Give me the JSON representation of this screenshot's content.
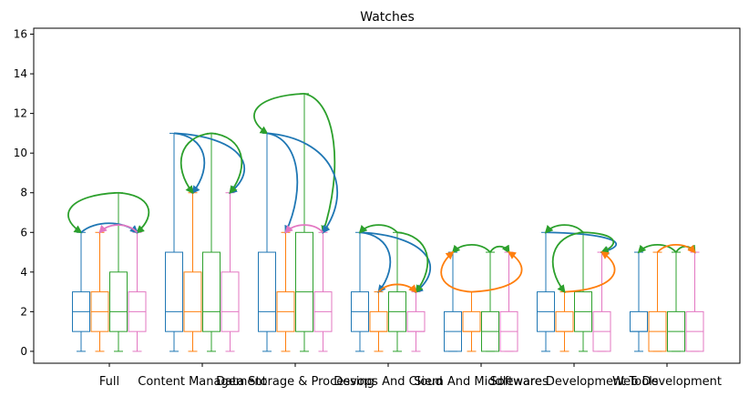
{
  "chart_data": {
    "type": "box",
    "title": "Watches",
    "xlabel": "",
    "ylabel": "",
    "ylim": [
      -0.6,
      16.3
    ],
    "yticks": [
      0,
      2,
      4,
      6,
      8,
      10,
      12,
      14,
      16
    ],
    "grid": false,
    "legend": "none",
    "series_colors": [
      "#1f77b4",
      "#ff7f0e",
      "#2ca02c",
      "#e377c2"
    ],
    "categories": [
      "Full",
      "Content Management",
      "Data Storage & Processing",
      "Devops And Cloud",
      "Siem And Middlewares",
      "Software Development Tools",
      "Web Development"
    ],
    "groups": [
      {
        "boxes": [
          {
            "min": 0,
            "q1": 1,
            "median": 2,
            "q3": 3,
            "max": 6
          },
          {
            "min": 0,
            "q1": 1,
            "median": 2,
            "q3": 3,
            "max": 6
          },
          {
            "min": 0,
            "q1": 1,
            "median": 2,
            "q3": 4,
            "max": 8
          },
          {
            "min": 0,
            "q1": 1,
            "median": 2,
            "q3": 3,
            "max": 6
          }
        ],
        "arrows": [
          {
            "from": 2,
            "to": 0,
            "color": "#2ca02c"
          },
          {
            "from": 2,
            "to": 3,
            "color": "#2ca02c"
          },
          {
            "from": 0,
            "to": 3,
            "color": "#1f77b4"
          },
          {
            "from": 3,
            "to": 1,
            "color": "#e377c2"
          }
        ]
      },
      {
        "boxes": [
          {
            "min": 0,
            "q1": 1,
            "median": 2,
            "q3": 5,
            "max": 11
          },
          {
            "min": 0,
            "q1": 1,
            "median": 2,
            "q3": 4,
            "max": 8
          },
          {
            "min": 0,
            "q1": 1,
            "median": 2,
            "q3": 5,
            "max": 11
          },
          {
            "min": 0,
            "q1": 1,
            "median": 2,
            "q3": 4,
            "max": 8
          }
        ],
        "arrows": [
          {
            "from": 0,
            "to": 1,
            "color": "#1f77b4"
          },
          {
            "from": 0,
            "to": 3,
            "color": "#1f77b4"
          },
          {
            "from": 2,
            "to": 1,
            "color": "#2ca02c"
          },
          {
            "from": 2,
            "to": 3,
            "color": "#2ca02c"
          }
        ]
      },
      {
        "boxes": [
          {
            "min": 0,
            "q1": 1,
            "median": 2,
            "q3": 5,
            "max": 11
          },
          {
            "min": 0,
            "q1": 1,
            "median": 2,
            "q3": 3,
            "max": 6
          },
          {
            "min": 0,
            "q1": 1,
            "median": 3,
            "q3": 6,
            "max": 13
          },
          {
            "min": 0,
            "q1": 1,
            "median": 2,
            "q3": 3,
            "max": 6
          }
        ],
        "arrows": [
          {
            "from": 2,
            "to": 0,
            "color": "#2ca02c"
          },
          {
            "from": 2,
            "to": 3,
            "color": "#2ca02c"
          },
          {
            "from": 0,
            "to": 1,
            "color": "#1f77b4"
          },
          {
            "from": 0,
            "to": 3,
            "color": "#1f77b4"
          },
          {
            "from": 3,
            "to": 1,
            "color": "#e377c2"
          }
        ]
      },
      {
        "boxes": [
          {
            "min": 0,
            "q1": 1,
            "median": 2,
            "q3": 3,
            "max": 6
          },
          {
            "min": 0,
            "q1": 1,
            "median": 1,
            "q3": 2,
            "max": 3
          },
          {
            "min": 0,
            "q1": 1,
            "median": 2,
            "q3": 3,
            "max": 6
          },
          {
            "min": 0,
            "q1": 1,
            "median": 1,
            "q3": 2,
            "max": 3
          }
        ],
        "arrows": [
          {
            "from": 0,
            "to": 1,
            "color": "#1f77b4"
          },
          {
            "from": 0,
            "to": 3,
            "color": "#1f77b4"
          },
          {
            "from": 2,
            "to": 0,
            "color": "#2ca02c"
          },
          {
            "from": 2,
            "to": 3,
            "color": "#2ca02c"
          },
          {
            "from": 1,
            "to": 3,
            "color": "#ff7f0e"
          }
        ]
      },
      {
        "boxes": [
          {
            "min": 0,
            "q1": 0,
            "median": 1,
            "q3": 2,
            "max": 5
          },
          {
            "min": 0,
            "q1": 1,
            "median": 1,
            "q3": 2,
            "max": 3
          },
          {
            "min": 0,
            "q1": 0,
            "median": 1,
            "q3": 2,
            "max": 5
          },
          {
            "min": 0,
            "q1": 0,
            "median": 1,
            "q3": 2,
            "max": 5
          }
        ],
        "arrows": [
          {
            "from": 2,
            "to": 0,
            "color": "#2ca02c"
          },
          {
            "from": 2,
            "to": 3,
            "color": "#2ca02c"
          },
          {
            "from": 1,
            "to": 0,
            "color": "#ff7f0e"
          },
          {
            "from": 1,
            "to": 3,
            "color": "#ff7f0e"
          }
        ]
      },
      {
        "boxes": [
          {
            "min": 0,
            "q1": 1,
            "median": 2,
            "q3": 3,
            "max": 6
          },
          {
            "min": 0,
            "q1": 1,
            "median": 1,
            "q3": 2,
            "max": 3
          },
          {
            "min": 0,
            "q1": 1,
            "median": 2,
            "q3": 3,
            "max": 6
          },
          {
            "min": 0,
            "q1": 0,
            "median": 1,
            "q3": 2,
            "max": 5
          }
        ],
        "arrows": [
          {
            "from": 0,
            "to": 3,
            "color": "#1f77b4"
          },
          {
            "from": 2,
            "to": 0,
            "color": "#2ca02c"
          },
          {
            "from": 2,
            "to": 3,
            "color": "#2ca02c"
          },
          {
            "from": 1,
            "to": 3,
            "color": "#ff7f0e"
          },
          {
            "from": 2,
            "to": 1,
            "color": "#2ca02c"
          }
        ]
      },
      {
        "boxes": [
          {
            "min": 0,
            "q1": 1,
            "median": 1,
            "q3": 2,
            "max": 5
          },
          {
            "min": 0,
            "q1": 0,
            "median": 1,
            "q3": 2,
            "max": 5
          },
          {
            "min": 0,
            "q1": 0,
            "median": 1,
            "q3": 2,
            "max": 5
          },
          {
            "min": 0,
            "q1": 0,
            "median": 1,
            "q3": 2,
            "max": 5
          }
        ],
        "arrows": [
          {
            "from": 2,
            "to": 0,
            "color": "#2ca02c"
          },
          {
            "from": 2,
            "to": 3,
            "color": "#2ca02c"
          },
          {
            "from": 1,
            "to": 3,
            "color": "#ff7f0e"
          }
        ]
      }
    ]
  }
}
